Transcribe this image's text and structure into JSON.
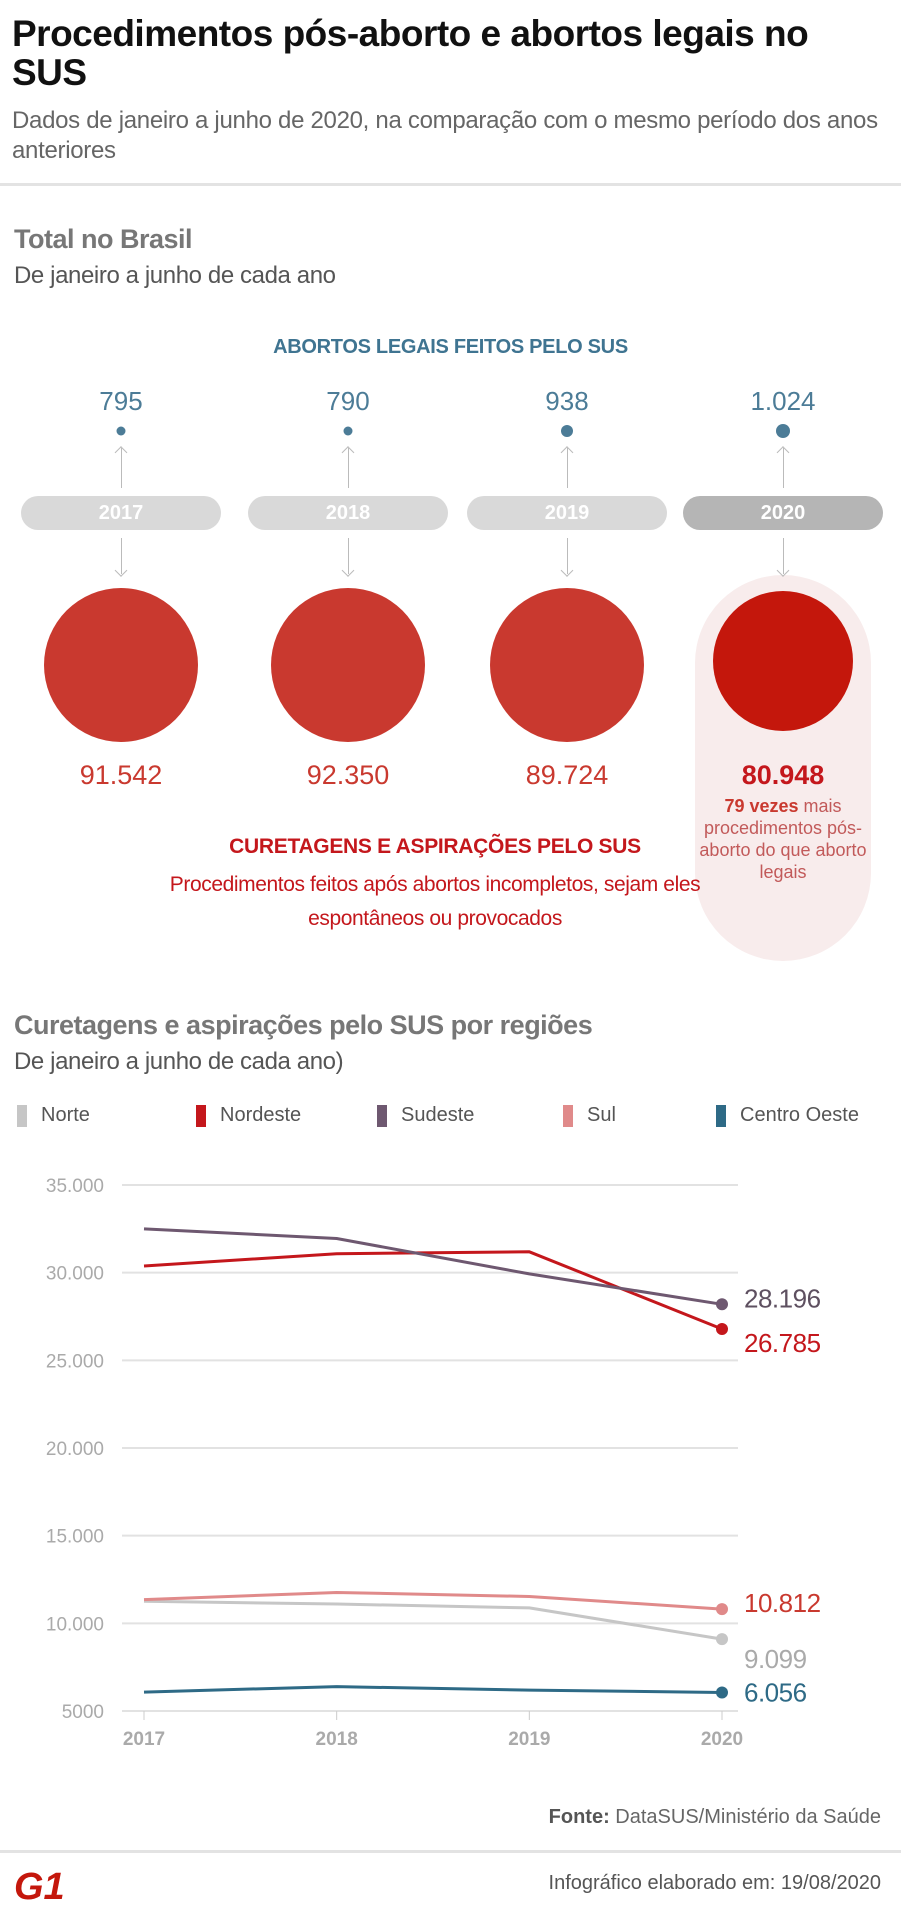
{
  "header": {
    "title": "Procedimentos pós-aborto e abortos legais no SUS",
    "subtitle": "Dados de janeiro a junho de 2020, na comparação com o mesmo período dos anos anteriores"
  },
  "total_section": {
    "title": "Total no Brasil",
    "subtitle": "De janeiro a junho de cada ano",
    "legal_heading": "ABORTOS LEGAIS FEITOS PELO SUS",
    "years": [
      {
        "year": "2017",
        "legal": "795",
        "curetagens": "91.542"
      },
      {
        "year": "2018",
        "legal": "790",
        "curetagens": "92.350"
      },
      {
        "year": "2019",
        "legal": "938",
        "curetagens": "89.724"
      },
      {
        "year": "2020",
        "legal": "1.024",
        "curetagens": "80.948"
      }
    ],
    "note_bold": "79 vezes",
    "note_rest": " mais procedimentos pós-aborto do que aborto legais",
    "curetagens_heading": "CURETAGENS E ASPIRAÇÕES PELO SUS",
    "curetagens_desc": "Procedimentos feitos após abortos incompletos, sejam eles espontâneos ou provocados",
    "colors": {
      "legal": "#4c7c97",
      "curetagens": "#c9392f",
      "highlight": "#c4171c"
    }
  },
  "chart_data": {
    "type": "line",
    "title": "Curetagens e aspirações pelo SUS por regiões",
    "subtitle": "De janeiro a junho de cada ano)",
    "categories": [
      "2017",
      "2018",
      "2019",
      "2020"
    ],
    "ylim": [
      5000,
      35000
    ],
    "yticks": [
      {
        "value": 35000,
        "label": "35.000"
      },
      {
        "value": 30000,
        "label": "30.000"
      },
      {
        "value": 25000,
        "label": "25.000"
      },
      {
        "value": 20000,
        "label": "20.000"
      },
      {
        "value": 15000,
        "label": "15.000"
      },
      {
        "value": 10000,
        "label": "10.000"
      },
      {
        "value": 5000,
        "label": "5000"
      }
    ],
    "grid": true,
    "legend_position": "top",
    "series": [
      {
        "name": "Norte",
        "color": "#c6c6c6",
        "label_color": "#aaaaaa",
        "values": [
          11260,
          11100,
          10880,
          9099
        ],
        "end_label": "9.099"
      },
      {
        "name": "Nordeste",
        "color": "#c4171c",
        "label_color": "#c4171c",
        "values": [
          30380,
          31080,
          31190,
          26785
        ],
        "end_label": "26.785"
      },
      {
        "name": "Sudeste",
        "color": "#6e5870",
        "label_color": "#5e5060",
        "values": [
          32500,
          31950,
          29930,
          28196
        ],
        "end_label": "28.196"
      },
      {
        "name": "Sul",
        "color": "#e08a8a",
        "label_color": "#c9392f",
        "values": [
          11350,
          11760,
          11530,
          10812
        ],
        "end_label": "10.812"
      },
      {
        "name": "Centro Oeste",
        "color": "#2e6a86",
        "label_color": "#2e6a86",
        "values": [
          6080,
          6390,
          6190,
          6056
        ],
        "end_label": "6.056"
      }
    ]
  },
  "footer": {
    "source_label": "Fonte:",
    "source": " DataSUS/Ministério da Saúde",
    "made": "Infográfico elaborado em: 19/08/2020",
    "logo": "G1"
  }
}
